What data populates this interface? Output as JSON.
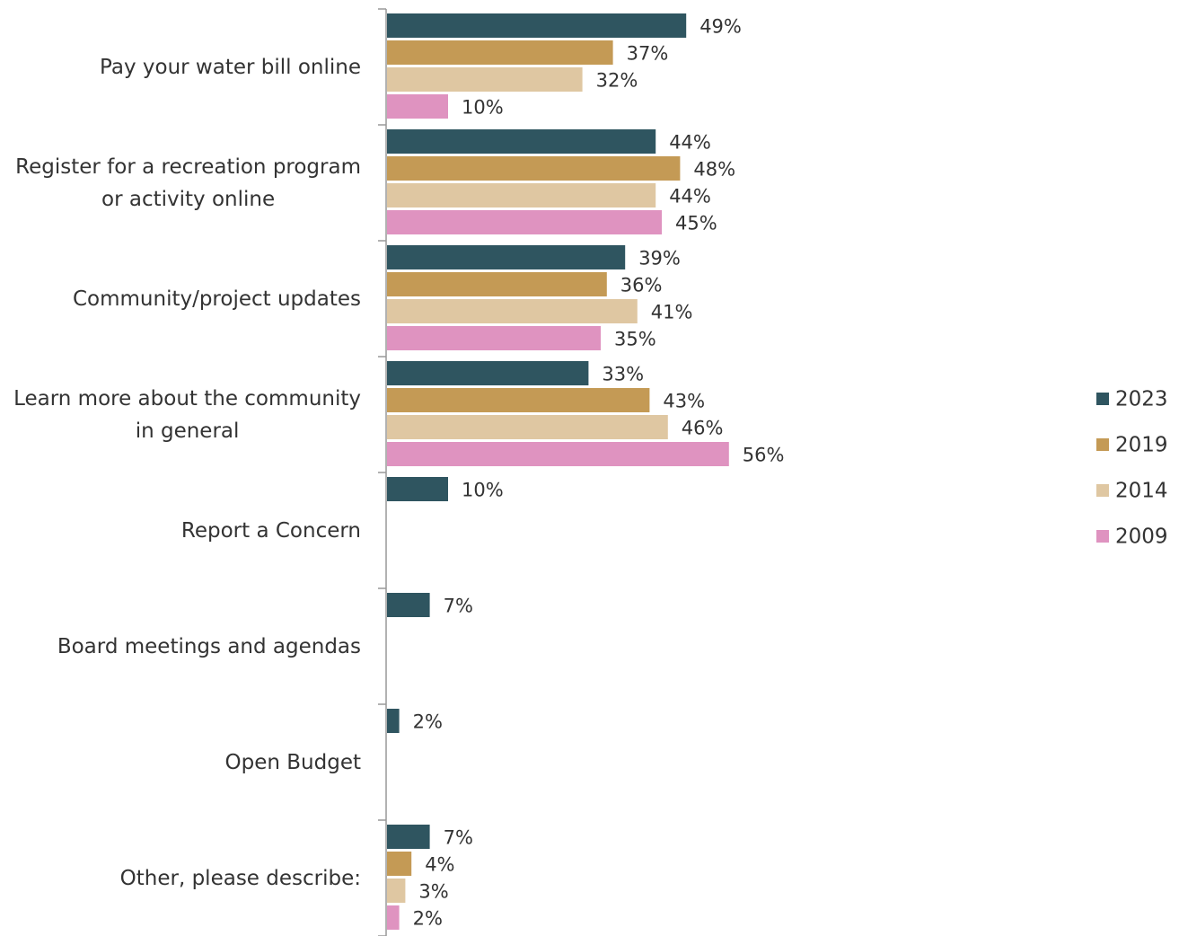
{
  "chart_data": {
    "type": "bar",
    "orientation": "horizontal",
    "categories": [
      "Pay your water bill online",
      "Register for a recreation program\nor activity online",
      "Community/project updates",
      "Learn more about the community\nin general",
      "Report a Concern",
      "Board meetings and agendas",
      "Open Budget",
      "Other, please describe:"
    ],
    "series": [
      {
        "name": "2023",
        "color": "#2f5560",
        "values": [
          49,
          44,
          39,
          33,
          10,
          7,
          2,
          7
        ],
        "value_labels": [
          "49%",
          "44%",
          "39%",
          "33%",
          "10%",
          "7%",
          "2%",
          "7%"
        ]
      },
      {
        "name": "2019",
        "color": "#c49a55",
        "values": [
          37,
          48,
          36,
          43,
          null,
          null,
          null,
          4
        ],
        "value_labels": [
          "37%",
          "48%",
          "36%",
          "43%",
          null,
          null,
          null,
          "4%"
        ]
      },
      {
        "name": "2014",
        "color": "#dfc7a2",
        "values": [
          32,
          44,
          41,
          46,
          null,
          null,
          null,
          3
        ],
        "value_labels": [
          "32%",
          "44%",
          "41%",
          "46%",
          null,
          null,
          null,
          "3%"
        ]
      },
      {
        "name": "2009",
        "color": "#df93c0",
        "values": [
          10,
          45,
          35,
          56,
          null,
          null,
          null,
          2
        ],
        "value_labels": [
          "10%",
          "45%",
          "35%",
          "56%",
          null,
          null,
          null,
          "2%"
        ]
      }
    ],
    "legend": "right"
  }
}
